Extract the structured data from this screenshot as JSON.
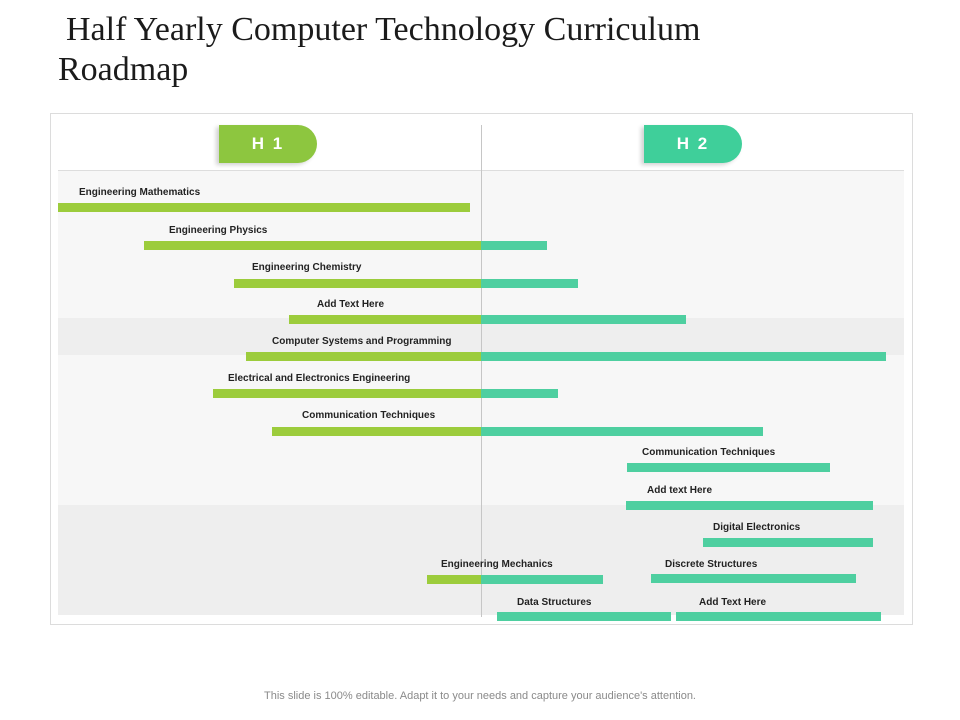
{
  "title": "Half Yearly Computer Technology Curriculum Roadmap",
  "halves": {
    "h1": "H 1",
    "h2": "H 2"
  },
  "colors": {
    "h1": "#8dc63f",
    "h2": "#3fcf9a",
    "bar_h1": "#9ccc3c",
    "bar_h2": "#4ecfa0"
  },
  "rows": [
    {
      "label": "Engineering Mathematics"
    },
    {
      "label": "Engineering Physics"
    },
    {
      "label": "Engineering Chemistry"
    },
    {
      "label": "Add Text Here"
    },
    {
      "label": "Computer Systems and Programming"
    },
    {
      "label": "Electrical and Electronics Engineering"
    },
    {
      "label": "Communication Techniques"
    },
    {
      "label": "Communication Techniques"
    },
    {
      "label": "Add text Here"
    },
    {
      "label": "Digital Electronics"
    },
    {
      "label": "Engineering Mechanics"
    },
    {
      "label": "Discrete Structures"
    },
    {
      "label": "Data Structures"
    },
    {
      "label": "Add Text Here"
    }
  ],
  "footer": "This slide is 100% editable. Adapt it to your needs and capture your audience's attention."
}
